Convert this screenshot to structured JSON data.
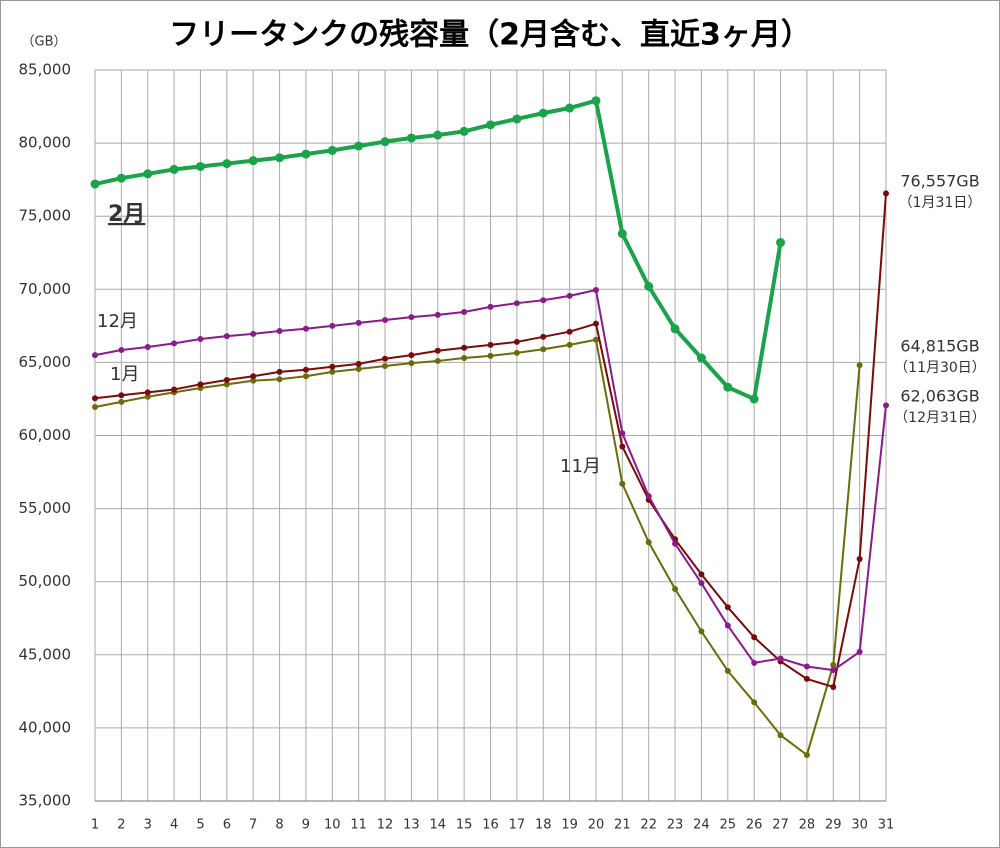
{
  "chart_data": {
    "type": "line",
    "title": "フリータンクの残容量（2月含む、直近3ヶ月）",
    "y_unit": "（GB）",
    "x": [
      1,
      2,
      3,
      4,
      5,
      6,
      7,
      8,
      9,
      10,
      11,
      12,
      13,
      14,
      15,
      16,
      17,
      18,
      19,
      20,
      21,
      22,
      23,
      24,
      25,
      26,
      27,
      28,
      29,
      30,
      31
    ],
    "xlim": [
      1,
      31
    ],
    "xticks": [
      1,
      2,
      3,
      4,
      5,
      6,
      7,
      8,
      9,
      10,
      11,
      12,
      13,
      14,
      15,
      16,
      17,
      18,
      19,
      20,
      21,
      22,
      23,
      24,
      25,
      26,
      27,
      28,
      29,
      30,
      31
    ],
    "ylim": [
      35000,
      85000
    ],
    "yticks": [
      {
        "value": 35000,
        "label": "35,000"
      },
      {
        "value": 40000,
        "label": "40,000"
      },
      {
        "value": 45000,
        "label": "45,000"
      },
      {
        "value": 50000,
        "label": "50,000"
      },
      {
        "value": 55000,
        "label": "55,000"
      },
      {
        "value": 60000,
        "label": "60,000"
      },
      {
        "value": 65000,
        "label": "65,000"
      },
      {
        "value": 70000,
        "label": "70,000"
      },
      {
        "value": 75000,
        "label": "75,000"
      },
      {
        "value": 80000,
        "label": "80,000"
      },
      {
        "value": 85000,
        "label": "85,000"
      }
    ],
    "grid": true,
    "series": [
      {
        "name": "11月",
        "color": "#6b6b0a",
        "values": [
          61950,
          62300,
          62650,
          62950,
          63250,
          63500,
          63750,
          63850,
          64050,
          64350,
          64550,
          64750,
          64950,
          65100,
          65300,
          65450,
          65650,
          65900,
          66200,
          66550,
          56700,
          52700,
          49500,
          46600,
          43900,
          41750,
          39500,
          38150,
          44300,
          64815,
          null
        ],
        "end_label": [
          "64,815GB",
          "（11月30日）"
        ]
      },
      {
        "name": "1月",
        "color": "#7b0a0a",
        "values": [
          62550,
          62750,
          62950,
          63150,
          63500,
          63800,
          64050,
          64350,
          64500,
          64700,
          64900,
          65250,
          65500,
          65800,
          66000,
          66200,
          66400,
          66750,
          67100,
          67650,
          59250,
          55600,
          52900,
          50500,
          48250,
          46200,
          44550,
          43350,
          42800,
          51550,
          76557
        ],
        "end_label": [
          "76,557GB",
          "（1月31日）"
        ]
      },
      {
        "name": "12月",
        "color": "#8b1a8b",
        "values": [
          65500,
          65850,
          66050,
          66300,
          66600,
          66800,
          66950,
          67150,
          67300,
          67500,
          67700,
          67900,
          68100,
          68250,
          68450,
          68800,
          69050,
          69250,
          69550,
          69950,
          60150,
          55850,
          52600,
          49900,
          47000,
          44450,
          44750,
          44200,
          43950,
          45200,
          62063
        ],
        "end_label": [
          "62,063GB",
          "（12月31日）"
        ]
      },
      {
        "name": "2月",
        "color": "#1aa34a",
        "values": [
          77200,
          77600,
          77900,
          78200,
          78400,
          78600,
          78800,
          79000,
          79250,
          79500,
          79800,
          80100,
          80350,
          80550,
          80800,
          81250,
          81650,
          82050,
          82400,
          82900,
          73800,
          70200,
          67300,
          65300,
          63300,
          62500,
          73200,
          null,
          null,
          null,
          null
        ]
      }
    ]
  }
}
